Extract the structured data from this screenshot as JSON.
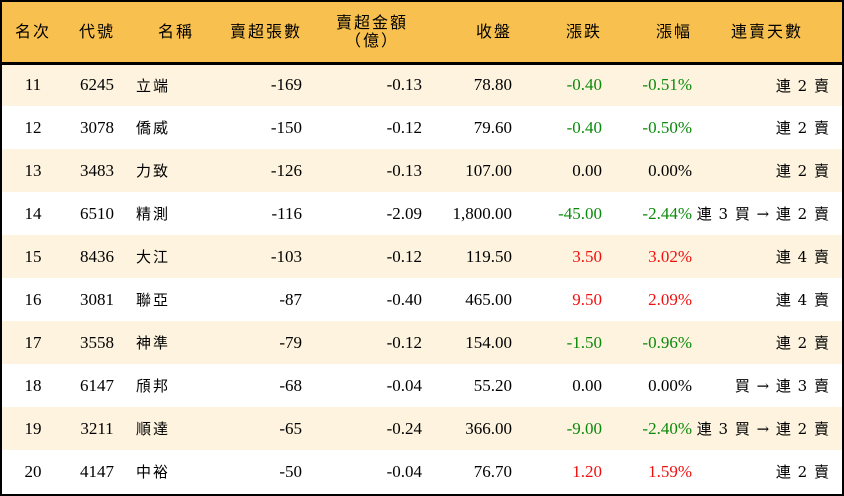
{
  "table": {
    "headers": {
      "rank": "名次",
      "code": "代號",
      "name": "名稱",
      "net_sell_volume": "賣超張數",
      "net_sell_amount_line1": "賣超金額",
      "net_sell_amount_line2": "（億）",
      "close": "收盤",
      "change": "漲跌",
      "change_pct": "漲幅",
      "consecutive_days": "連賣天數"
    },
    "colors": {
      "header_bg": "#F8C04E",
      "row_odd_bg": "#FDF3DE",
      "row_even_bg": "#FFFFFF",
      "up": "#F01010",
      "down": "#0B8A0B",
      "flat": "#000000"
    },
    "rows": [
      {
        "rank": "11",
        "code": "6245",
        "name": "立端",
        "volume": "-169",
        "amount": "-0.13",
        "close": "78.80",
        "change": "-0.40",
        "pct": "-0.51%",
        "trend": "down",
        "days": "連 2 賣"
      },
      {
        "rank": "12",
        "code": "3078",
        "name": "僑威",
        "volume": "-150",
        "amount": "-0.12",
        "close": "79.60",
        "change": "-0.40",
        "pct": "-0.50%",
        "trend": "down",
        "days": "連 2 賣"
      },
      {
        "rank": "13",
        "code": "3483",
        "name": "力致",
        "volume": "-126",
        "amount": "-0.13",
        "close": "107.00",
        "change": "0.00",
        "pct": "0.00%",
        "trend": "flat",
        "days": "連 2 賣"
      },
      {
        "rank": "14",
        "code": "6510",
        "name": "精測",
        "volume": "-116",
        "amount": "-2.09",
        "close": "1,800.00",
        "change": "-45.00",
        "pct": "-2.44%",
        "trend": "down",
        "days": "連 3 買 → 連 2 賣"
      },
      {
        "rank": "15",
        "code": "8436",
        "name": "大江",
        "volume": "-103",
        "amount": "-0.12",
        "close": "119.50",
        "change": "3.50",
        "pct": "3.02%",
        "trend": "up",
        "days": "連 4 賣"
      },
      {
        "rank": "16",
        "code": "3081",
        "name": "聯亞",
        "volume": "-87",
        "amount": "-0.40",
        "close": "465.00",
        "change": "9.50",
        "pct": "2.09%",
        "trend": "up",
        "days": "連 4 賣"
      },
      {
        "rank": "17",
        "code": "3558",
        "name": "神準",
        "volume": "-79",
        "amount": "-0.12",
        "close": "154.00",
        "change": "-1.50",
        "pct": "-0.96%",
        "trend": "down",
        "days": "連 2 賣"
      },
      {
        "rank": "18",
        "code": "6147",
        "name": "頎邦",
        "volume": "-68",
        "amount": "-0.04",
        "close": "55.20",
        "change": "0.00",
        "pct": "0.00%",
        "trend": "flat",
        "days": "買 → 連 3 賣"
      },
      {
        "rank": "19",
        "code": "3211",
        "name": "順達",
        "volume": "-65",
        "amount": "-0.24",
        "close": "366.00",
        "change": "-9.00",
        "pct": "-2.40%",
        "trend": "down",
        "days": "連 3 買 → 連 2 賣"
      },
      {
        "rank": "20",
        "code": "4147",
        "name": "中裕",
        "volume": "-50",
        "amount": "-0.04",
        "close": "76.70",
        "change": "1.20",
        "pct": "1.59%",
        "trend": "up",
        "days": "連 2 賣"
      }
    ]
  }
}
